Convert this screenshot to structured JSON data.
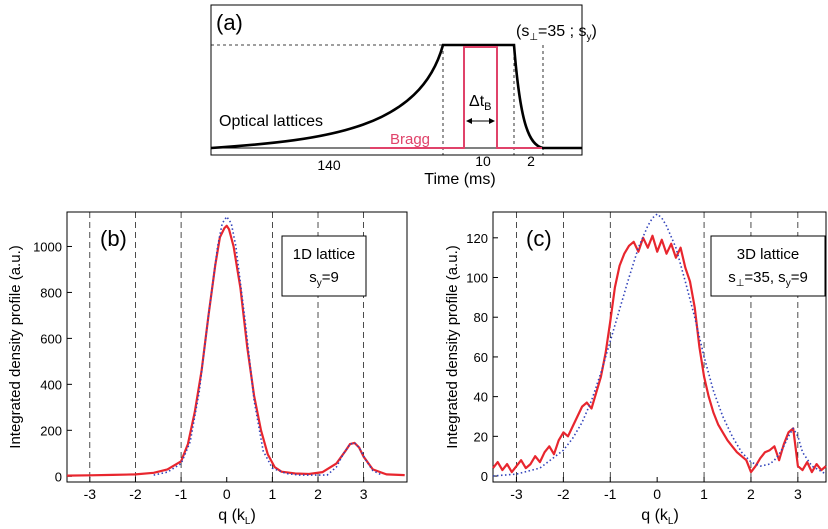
{
  "chart_data": [
    {
      "panel_label": "(a)",
      "type": "line",
      "xlabel": "Time (ms)",
      "tick_labels": [
        "140",
        "10",
        "2"
      ],
      "annotation_params_prefix": "(s",
      "annotation_params_perp_sub": "⊥",
      "annotation_params_mid": "=35 ; s",
      "annotation_params_y_sub": "y",
      "annotation_params_suffix": ")",
      "duration_label": "Δt",
      "duration_sub": "B",
      "series": [
        {
          "name": "Optical lattices",
          "color": "#000000",
          "segments": [
            {
              "phase": "exponential ramp-up",
              "duration_ms": 140,
              "level": [
                0,
                1
              ]
            },
            {
              "phase": "hold",
              "duration_ms": 10,
              "level": 1
            },
            {
              "phase": "ramp-down",
              "duration_ms": 2,
              "level": [
                1,
                0
              ]
            }
          ]
        },
        {
          "name": "Bragg",
          "color": "#e0436a",
          "segments": [
            {
              "phase": "pulse",
              "within_hold": true,
              "level": 0.95
            }
          ]
        }
      ]
    },
    {
      "panel_label": "(b)",
      "type": "line",
      "xlabel_prefix": "q (k",
      "xlabel_sub": "L",
      "xlabel_suffix": ")",
      "ylabel": "Integrated density profile (a.u.)",
      "xlim": [
        -3.5,
        3.95
      ],
      "ylim": [
        -25,
        1150
      ],
      "xticks": [
        -3,
        -2,
        -1,
        0,
        1,
        2,
        3
      ],
      "yticks": [
        0,
        200,
        400,
        600,
        800,
        1000
      ],
      "vlines": [
        -3,
        -2,
        -1,
        1,
        2,
        3
      ],
      "legend_line1": "1D lattice",
      "legend_line2_prefix": "s",
      "legend_line2_sub": "y",
      "legend_line2_suffix": "=9",
      "series": [
        {
          "color": "#e8262e",
          "style": "solid",
          "x": [
            -3.5,
            -3.0,
            -2.5,
            -2.0,
            -1.6,
            -1.3,
            -1.0,
            -0.85,
            -0.7,
            -0.55,
            -0.4,
            -0.25,
            -0.15,
            -0.05,
            0.0,
            0.05,
            0.15,
            0.3,
            0.45,
            0.6,
            0.75,
            0.9,
            1.05,
            1.2,
            1.5,
            1.8,
            2.1,
            2.4,
            2.6,
            2.7,
            2.8,
            2.9,
            3.0,
            3.2,
            3.5,
            3.9
          ],
          "y": [
            3,
            4,
            6,
            8,
            15,
            30,
            65,
            140,
            280,
            460,
            700,
            920,
            1040,
            1080,
            1090,
            1075,
            1000,
            820,
            560,
            350,
            200,
            95,
            40,
            20,
            12,
            10,
            18,
            55,
            110,
            140,
            145,
            125,
            85,
            30,
            8,
            5
          ]
        },
        {
          "color": "#3344bb",
          "style": "dotted",
          "x": [
            -1.6,
            -1.3,
            -1.0,
            -0.8,
            -0.6,
            -0.4,
            -0.2,
            -0.1,
            0.0,
            0.1,
            0.2,
            0.4,
            0.6,
            0.8,
            1.0,
            1.3,
            1.6,
            2.2,
            2.4,
            2.55,
            2.7,
            2.8,
            2.9,
            3.05,
            3.2,
            3.4
          ],
          "y": [
            5,
            18,
            55,
            150,
            370,
            700,
            1000,
            1100,
            1130,
            1100,
            1000,
            680,
            330,
            110,
            35,
            12,
            5,
            5,
            40,
            95,
            140,
            145,
            125,
            70,
            25,
            5
          ]
        }
      ]
    },
    {
      "panel_label": "(c)",
      "type": "line",
      "xlabel_prefix": "q (k",
      "xlabel_sub": "L",
      "xlabel_suffix": ")",
      "ylabel": "Integrated density profile (a.u.)",
      "xlim": [
        -3.5,
        3.6
      ],
      "ylim": [
        -3,
        133
      ],
      "xticks": [
        -3,
        -2,
        -1,
        0,
        1,
        2,
        3
      ],
      "yticks": [
        0,
        20,
        40,
        60,
        80,
        100,
        120
      ],
      "vlines": [
        -3,
        -2,
        -1,
        1,
        2,
        3
      ],
      "legend_line1": "3D lattice",
      "legend_line2_prefix": "s",
      "legend_line2_sub": "⊥",
      "legend_line2_mid": "=35, s",
      "legend_line2_sub2": "y",
      "legend_line2_suffix": "=9",
      "series": [
        {
          "color": "#e8262e",
          "style": "solid",
          "x": [
            -3.5,
            -3.4,
            -3.3,
            -3.2,
            -3.1,
            -3.0,
            -2.9,
            -2.8,
            -2.7,
            -2.6,
            -2.5,
            -2.4,
            -2.3,
            -2.2,
            -2.1,
            -2.0,
            -1.9,
            -1.8,
            -1.7,
            -1.6,
            -1.5,
            -1.4,
            -1.3,
            -1.2,
            -1.1,
            -1.0,
            -0.9,
            -0.8,
            -0.7,
            -0.6,
            -0.5,
            -0.4,
            -0.3,
            -0.2,
            -0.1,
            0.0,
            0.1,
            0.2,
            0.3,
            0.4,
            0.5,
            0.6,
            0.7,
            0.8,
            0.9,
            1.0,
            1.1,
            1.2,
            1.3,
            1.4,
            1.5,
            1.6,
            1.7,
            1.8,
            1.9,
            2.0,
            2.1,
            2.2,
            2.3,
            2.4,
            2.5,
            2.6,
            2.7,
            2.8,
            2.9,
            3.0,
            3.1,
            3.2,
            3.3,
            3.4,
            3.5,
            3.6
          ],
          "y": [
            4,
            7,
            3,
            6,
            2,
            5,
            8,
            4,
            6,
            10,
            7,
            12,
            15,
            11,
            18,
            22,
            20,
            25,
            30,
            35,
            37,
            34,
            42,
            50,
            62,
            78,
            95,
            106,
            112,
            116,
            118,
            113,
            120,
            115,
            121,
            113,
            119,
            112,
            117,
            110,
            115,
            105,
            98,
            85,
            65,
            50,
            40,
            32,
            26,
            22,
            18,
            15,
            12,
            10,
            8,
            2,
            5,
            9,
            12,
            13,
            15,
            8,
            16,
            22,
            24,
            5,
            3,
            7,
            2,
            6,
            3,
            5
          ]
        },
        {
          "color": "#3344bb",
          "style": "dotted",
          "x": [
            -3.5,
            -3.0,
            -2.5,
            -2.0,
            -1.8,
            -1.6,
            -1.4,
            -1.2,
            -1.0,
            -0.8,
            -0.6,
            -0.4,
            -0.2,
            -0.1,
            0.0,
            0.1,
            0.2,
            0.4,
            0.6,
            0.8,
            1.0,
            1.2,
            1.4,
            1.6,
            1.8,
            2.0,
            2.2,
            2.4,
            2.5,
            2.6,
            2.7,
            2.8,
            2.9,
            3.0,
            3.1,
            3.3,
            3.6
          ],
          "y": [
            0,
            1,
            4,
            13,
            19,
            27,
            38,
            52,
            68,
            84,
            100,
            115,
            126,
            130,
            132,
            130,
            126,
            115,
            98,
            80,
            60,
            43,
            30,
            20,
            12,
            7,
            5,
            6,
            8,
            11,
            15,
            20,
            24,
            20,
            12,
            5,
            1
          ]
        }
      ]
    }
  ]
}
